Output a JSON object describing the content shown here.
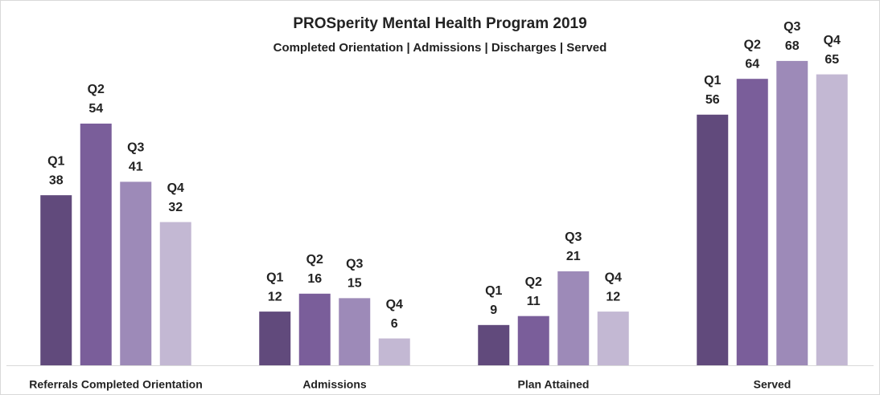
{
  "chart_data": {
    "type": "bar",
    "title": "PROSperity Mental Health Program 2019",
    "subtitle": "Completed Orientation | Admissions | Discharges | Served",
    "categories": [
      "Referrals Completed Orientation",
      "Admissions",
      "Plan Attained",
      "Served"
    ],
    "series": [
      {
        "name": "Q1",
        "color": "#614a7c",
        "values": [
          38,
          12,
          9,
          56
        ]
      },
      {
        "name": "Q2",
        "color": "#7a5e9a",
        "values": [
          54,
          16,
          11,
          64
        ]
      },
      {
        "name": "Q3",
        "color": "#9d8ab8",
        "values": [
          41,
          15,
          21,
          68
        ]
      },
      {
        "name": "Q4",
        "color": "#c3b8d3",
        "values": [
          32,
          6,
          12,
          65
        ]
      }
    ],
    "ylim": [
      0,
      80
    ]
  }
}
